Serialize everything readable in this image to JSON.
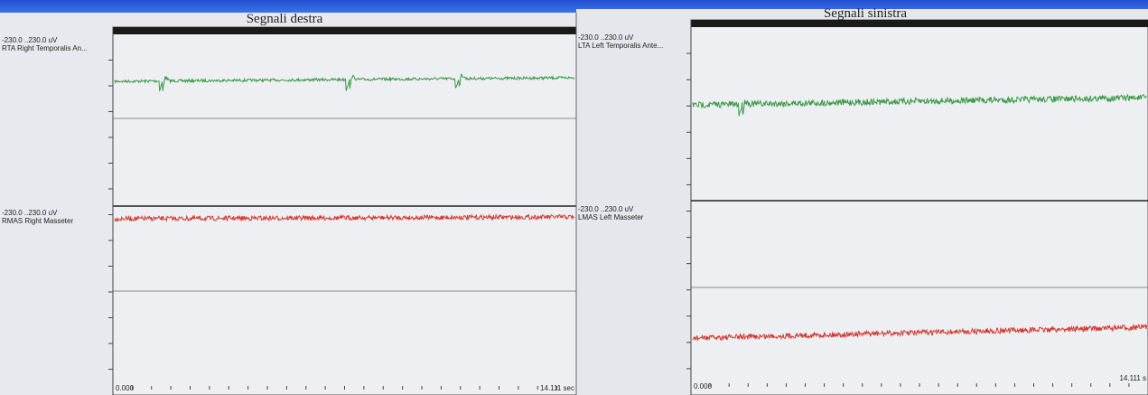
{
  "panels": [
    {
      "title": "Segnali destra",
      "channels": [
        {
          "range": "-230.0 ..230.0 uV",
          "name": "RTA Right Temporalis An..."
        },
        {
          "range": "-230.0 ..230.0 uV",
          "name": "RMAS Right Masseter"
        }
      ],
      "time_start": "0.000",
      "time_end": "14.111 sec"
    },
    {
      "title": "Segnali sinistra",
      "channels": [
        {
          "range": "-230.0 ..230.0 uV",
          "name": "LTA Left Temporalis Ante..."
        },
        {
          "range": "-230.0 ..230.0 uV",
          "name": "LMAS Left Masseter"
        }
      ],
      "time_start": "0.000",
      "time_end": "14.111 s"
    }
  ]
}
